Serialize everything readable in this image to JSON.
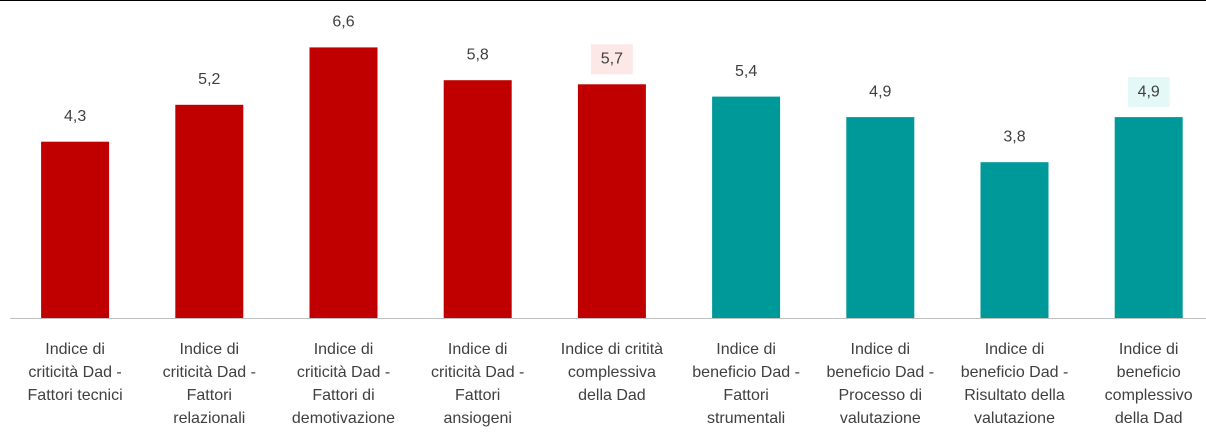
{
  "chart_data": {
    "type": "bar",
    "categories": [
      "Indice di\ncriticità Dad -\nFattori tecnici",
      "Indice di\ncriticità Dad -\nFattori\nrelazionali",
      "Indice di\ncriticità Dad -\nFattori di\ndemotivazione",
      "Indice di\ncriticità Dad -\nFattori\nansiogeni",
      "Indice di critità\ncomplessiva\ndella Dad",
      "Indice di\nbeneficio Dad -\nFattori\nstrumentali",
      "Indice di\nbeneficio Dad -\nProcesso di\nvalutazione",
      "Indice di\nbeneficio Dad -\nRisultato della\nvalutazione",
      "Indice di\nbeneficio\ncomplessivo\ndella Dad"
    ],
    "values": [
      4.3,
      5.2,
      6.6,
      5.8,
      5.7,
      5.4,
      4.9,
      3.8,
      4.9
    ],
    "value_labels": [
      "4,3",
      "5,2",
      "6,6",
      "5,8",
      "5,7",
      "5,4",
      "4,9",
      "3,8",
      "4,9"
    ],
    "colors": [
      "#c00000",
      "#c00000",
      "#c00000",
      "#c00000",
      "#c00000",
      "#009999",
      "#009999",
      "#009999",
      "#009999"
    ],
    "label_backgrounds": [
      null,
      null,
      null,
      null,
      "#fde8e8",
      null,
      null,
      null,
      "#e5f8f8"
    ],
    "ylim": [
      0,
      7
    ]
  }
}
